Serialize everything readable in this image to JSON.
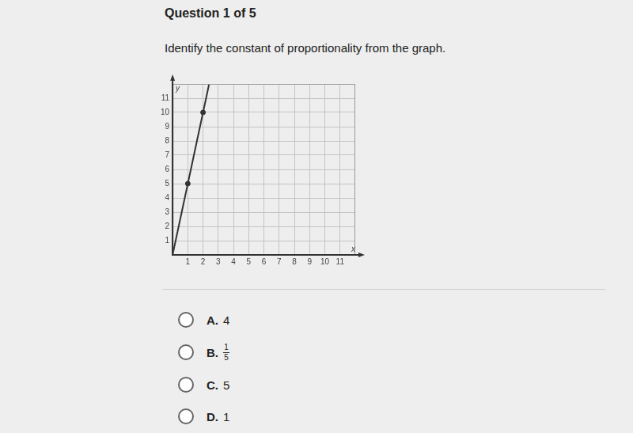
{
  "header": {
    "title": "Question 1 of 5"
  },
  "question": "Identify the constant of proportionality from the graph.",
  "chart_data": {
    "type": "line",
    "x_label": "x",
    "y_label": "y",
    "xlim": [
      0,
      12
    ],
    "ylim": [
      0,
      12
    ],
    "xticks": [
      1,
      2,
      3,
      4,
      5,
      6,
      7,
      8,
      9,
      10,
      11
    ],
    "yticks": [
      1,
      2,
      3,
      4,
      5,
      6,
      7,
      8,
      9,
      10,
      11
    ],
    "grid": true,
    "color": "#333333",
    "series": [
      {
        "type": "line",
        "x": [
          0,
          2.4
        ],
        "values": [
          0,
          12
        ]
      },
      {
        "type": "scatter",
        "marker": "circle",
        "x": [
          1,
          2
        ],
        "values": [
          5,
          10
        ]
      }
    ]
  },
  "choices": [
    {
      "label": "A.",
      "text": "4"
    },
    {
      "label": "B.",
      "fraction": {
        "numerator": "1",
        "denominator": "5"
      }
    },
    {
      "label": "C.",
      "text": "5"
    },
    {
      "label": "D.",
      "text": "1"
    }
  ]
}
